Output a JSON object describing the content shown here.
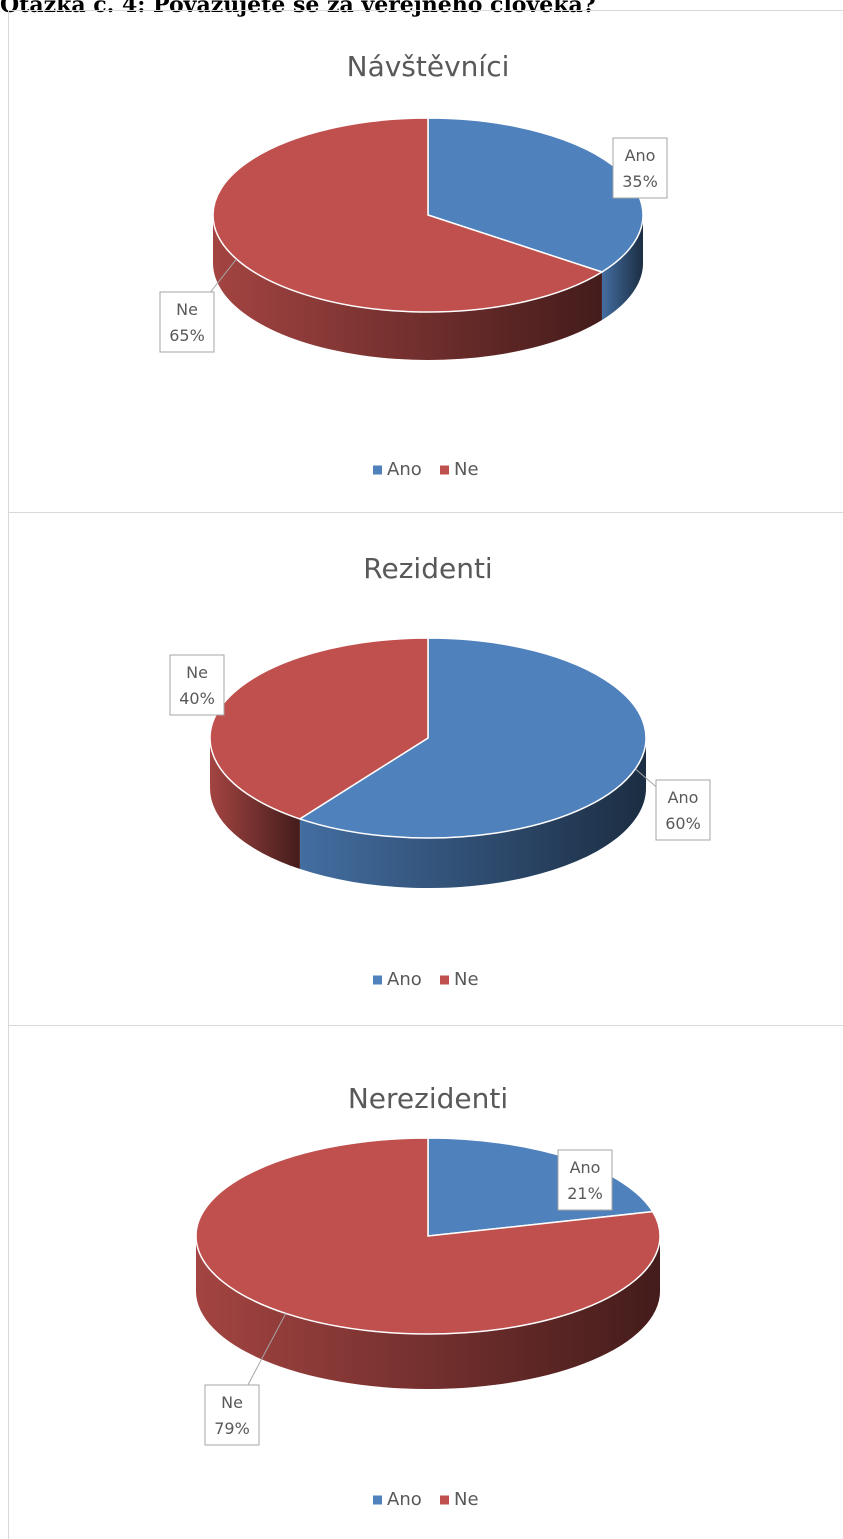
{
  "heading": "Otázka č. 4: Považujete se za veřejného člověka?",
  "chart_data": [
    {
      "type": "pie",
      "title": "Návštěvníci",
      "categories": [
        "Ano",
        "Ne"
      ],
      "values": [
        35,
        65
      ],
      "value_labels": [
        "35%",
        "65%"
      ],
      "colors": [
        "#4f81bd",
        "#c0504d"
      ]
    },
    {
      "type": "pie",
      "title": "Rezidenti",
      "categories": [
        "Ano",
        "Ne"
      ],
      "values": [
        60,
        40
      ],
      "value_labels": [
        "60%",
        "40%"
      ],
      "colors": [
        "#4f81bd",
        "#c0504d"
      ]
    },
    {
      "type": "pie",
      "title": "Nerezidenti",
      "categories": [
        "Ano",
        "Ne"
      ],
      "values": [
        21,
        79
      ],
      "value_labels": [
        "21%",
        "79%"
      ],
      "colors": [
        "#4f81bd",
        "#c0504d"
      ]
    }
  ]
}
